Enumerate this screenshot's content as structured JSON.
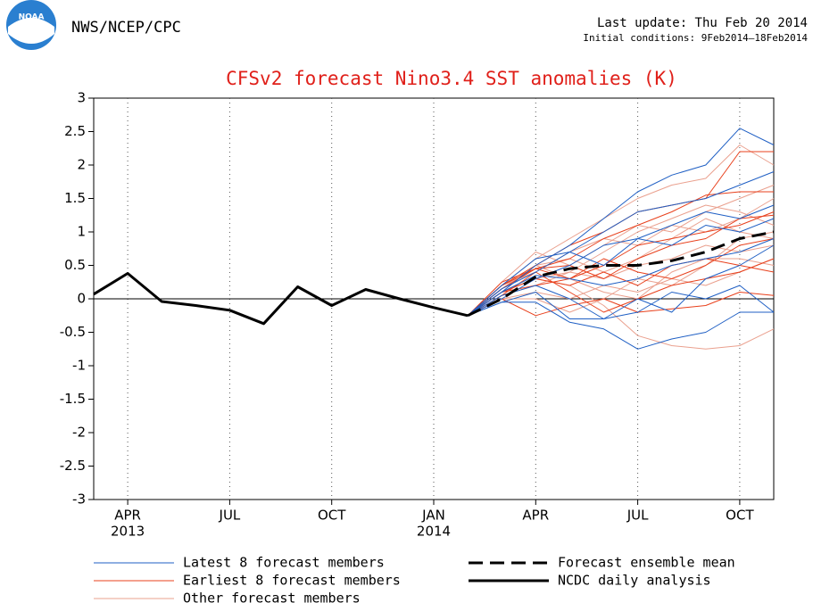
{
  "chart_data": {
    "type": "line",
    "agency": "NWS/NCEP/CPC",
    "logo_text": "NOAA",
    "update": "Last update: Thu Feb 20 2014",
    "initial_conditions": "Initial conditions: 9Feb2014—18Feb2014",
    "title": "CFSv2 forecast Nino3.4 SST anomalies (K)",
    "xlim": [
      3,
      23
    ],
    "ylim": [
      -3,
      3
    ],
    "xticks": [
      {
        "value": 4,
        "label": "APR"
      },
      {
        "value": 7,
        "label": "JUL"
      },
      {
        "value": 10,
        "label": "OCT"
      },
      {
        "value": 13,
        "label": "JAN"
      },
      {
        "value": 16,
        "label": "APR"
      },
      {
        "value": 19,
        "label": "JUL"
      },
      {
        "value": 22,
        "label": "OCT"
      }
    ],
    "xtick_years": [
      {
        "value": 4,
        "label": "2013"
      },
      {
        "value": 13,
        "label": "2014"
      }
    ],
    "yticks": [
      -3,
      -2.5,
      -2,
      -1.5,
      -1,
      -0.5,
      0,
      0.5,
      1,
      1.5,
      2,
      2.5,
      3
    ],
    "grid": "vertical-dotted",
    "series": [
      {
        "name": "Latest 8 forecast members",
        "color": "#1f5fc4",
        "line_style": "solid",
        "line_width": 1,
        "x": [
          14,
          15,
          16,
          17,
          18,
          19,
          20,
          21,
          22,
          23
        ],
        "members": [
          [
            -0.25,
            0.1,
            0.5,
            0.8,
            1.2,
            1.6,
            1.85,
            2.0,
            2.55,
            2.3
          ],
          [
            -0.25,
            0.2,
            0.6,
            0.7,
            1.0,
            1.3,
            1.4,
            1.5,
            1.7,
            1.9
          ],
          [
            -0.25,
            0.0,
            0.3,
            0.5,
            0.8,
            0.9,
            1.1,
            1.3,
            1.2,
            1.4
          ],
          [
            -0.25,
            -0.05,
            -0.05,
            -0.35,
            -0.45,
            -0.75,
            -0.6,
            -0.5,
            -0.2,
            -0.2
          ],
          [
            -0.25,
            0.05,
            0.2,
            0.0,
            -0.3,
            -0.2,
            0.1,
            0.0,
            0.2,
            -0.2
          ],
          [
            -0.25,
            0.15,
            0.4,
            0.7,
            0.5,
            0.9,
            0.8,
            1.1,
            1.0,
            1.2
          ],
          [
            -0.25,
            0.1,
            0.35,
            0.3,
            0.2,
            0.3,
            0.5,
            0.6,
            0.7,
            0.9
          ],
          [
            -0.25,
            -0.05,
            0.1,
            -0.3,
            -0.3,
            0.0,
            -0.2,
            0.3,
            0.5,
            0.8
          ]
        ]
      },
      {
        "name": "Earliest 8 forecast members",
        "color": "#e8401c",
        "line_style": "solid",
        "line_width": 1,
        "x": [
          14,
          15,
          16,
          17,
          18,
          19,
          20,
          21,
          22,
          23
        ],
        "members": [
          [
            -0.25,
            0.2,
            0.5,
            0.8,
            1.0,
            1.3,
            1.4,
            1.5,
            2.2,
            2.2
          ],
          [
            -0.25,
            0.15,
            0.45,
            0.6,
            0.9,
            1.1,
            1.3,
            1.55,
            1.6,
            1.6
          ],
          [
            -0.25,
            0.2,
            0.45,
            0.3,
            0.5,
            0.8,
            0.9,
            1.0,
            1.1,
            1.3
          ],
          [
            -0.25,
            0.0,
            -0.25,
            -0.1,
            0.0,
            -0.2,
            -0.15,
            -0.1,
            0.1,
            0.05
          ],
          [
            -0.25,
            0.1,
            0.3,
            0.2,
            0.4,
            0.2,
            0.5,
            0.6,
            0.5,
            0.4
          ],
          [
            -0.25,
            0.25,
            0.45,
            0.5,
            0.3,
            0.6,
            0.8,
            0.9,
            1.2,
            1.25
          ],
          [
            -0.25,
            0.05,
            0.4,
            0.1,
            -0.2,
            0.0,
            0.2,
            0.3,
            0.4,
            0.6
          ],
          [
            -0.25,
            0.1,
            0.2,
            0.3,
            0.6,
            0.4,
            0.3,
            0.5,
            0.8,
            0.9
          ]
        ]
      },
      {
        "name": "Other forecast members",
        "color": "#eaa08e",
        "line_style": "solid",
        "line_width": 1,
        "x": [
          14,
          15,
          16,
          17,
          18,
          19,
          20,
          21,
          22,
          23
        ],
        "members": [
          [
            -0.25,
            0.2,
            0.6,
            0.9,
            1.2,
            1.5,
            1.7,
            1.8,
            2.3,
            2.0
          ],
          [
            -0.25,
            0.1,
            0.3,
            0.2,
            -0.1,
            -0.55,
            -0.7,
            -0.75,
            -0.7,
            -0.45
          ],
          [
            -0.25,
            0.05,
            0.2,
            0.4,
            0.7,
            1.0,
            1.2,
            1.4,
            1.3,
            1.1
          ],
          [
            -0.25,
            0.15,
            0.5,
            0.6,
            0.4,
            0.6,
            0.9,
            1.2,
            1.0,
            0.9
          ],
          [
            -0.25,
            0.0,
            0.1,
            0.0,
            0.2,
            0.1,
            0.3,
            0.2,
            0.4,
            0.6
          ],
          [
            -0.25,
            0.25,
            0.7,
            0.5,
            0.8,
            1.1,
            1.0,
            1.3,
            1.5,
            1.7
          ],
          [
            -0.25,
            0.1,
            0.3,
            0.4,
            0.3,
            0.5,
            0.6,
            0.8,
            0.7,
            0.8
          ],
          [
            -0.25,
            0.0,
            0.0,
            -0.2,
            0.0,
            0.3,
            0.2,
            0.5,
            0.9,
            1.0
          ],
          [
            -0.25,
            0.2,
            0.4,
            0.7,
            0.9,
            0.8,
            1.1,
            1.0,
            1.2,
            1.5
          ],
          [
            -0.25,
            0.1,
            0.5,
            0.3,
            0.1,
            0.0,
            0.4,
            0.6,
            0.6,
            0.5
          ]
        ]
      },
      {
        "name": "Forecast ensemble mean",
        "color": "#000000",
        "line_style": "dashed",
        "line_width": 3,
        "x": [
          14,
          15,
          16,
          17,
          18,
          19,
          20,
          21,
          22,
          23
        ],
        "values": [
          -0.25,
          0.0,
          0.33,
          0.45,
          0.5,
          0.5,
          0.57,
          0.7,
          0.9,
          1.0
        ]
      },
      {
        "name": "NCDC daily analysis",
        "color": "#000000",
        "line_style": "solid",
        "line_width": 3,
        "x": [
          3,
          4,
          5,
          6,
          7,
          8,
          9,
          10,
          11,
          12,
          13,
          14
        ],
        "values": [
          0.07,
          0.38,
          -0.04,
          -0.1,
          -0.17,
          -0.37,
          0.18,
          -0.1,
          0.14,
          0.0,
          -0.13,
          -0.25
        ]
      }
    ]
  }
}
